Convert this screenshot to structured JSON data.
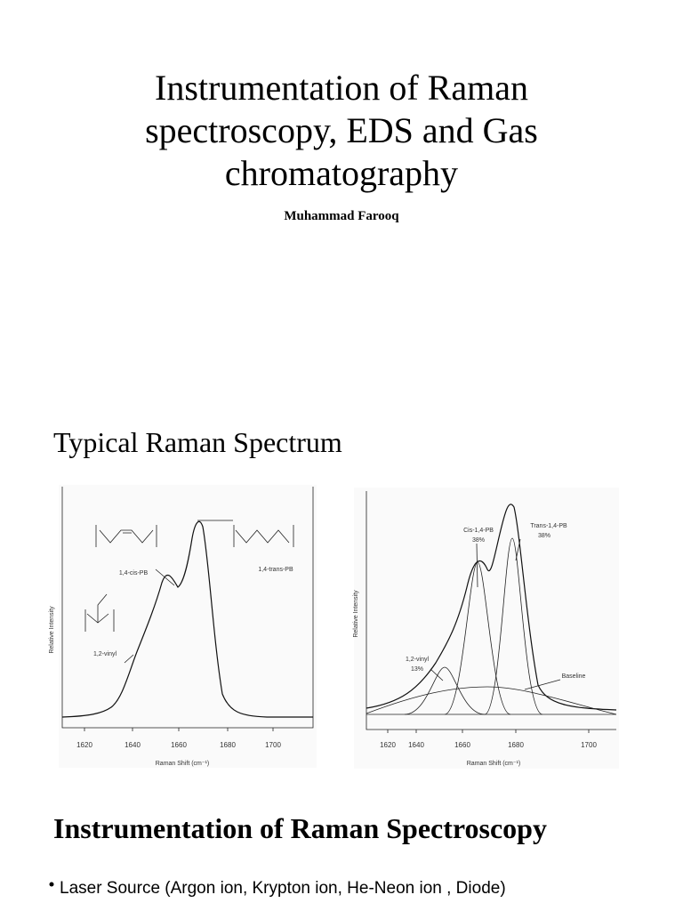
{
  "header": {
    "title_lines": [
      "Instrumentation of Raman",
      "spectroscopy, EDS and Gas",
      "chromatography"
    ],
    "author": "Muhammad Farooq"
  },
  "section1": {
    "heading": "Typical Raman Spectrum",
    "figures": [
      {
        "x_ticks": [
          "1620",
          "1640",
          "1660",
          "1680",
          "1700"
        ],
        "x_label": "Raman Shift (cm⁻¹)",
        "y_label": "Relative Intensity",
        "annotations": [
          "1,4-cis-PB",
          "1,4-trans-PB",
          "1,2-vinyl"
        ]
      },
      {
        "x_ticks": [
          "1620",
          "1640",
          "1660",
          "1680",
          "1700"
        ],
        "x_label": "Raman Shift (cm⁻¹)",
        "y_label": "Relative Intensity",
        "annotations": [
          "Cis-1,4-PB",
          "38%",
          "Trans-1,4-PB",
          "38%",
          "1,2-vinyl",
          "13%",
          "Baseline"
        ]
      }
    ]
  },
  "section2": {
    "heading": "Instrumentation of Raman Spectroscopy",
    "bullets": [
      "Laser Source (Argon ion, Krypton ion, He-Neon ion , Diode)"
    ]
  }
}
